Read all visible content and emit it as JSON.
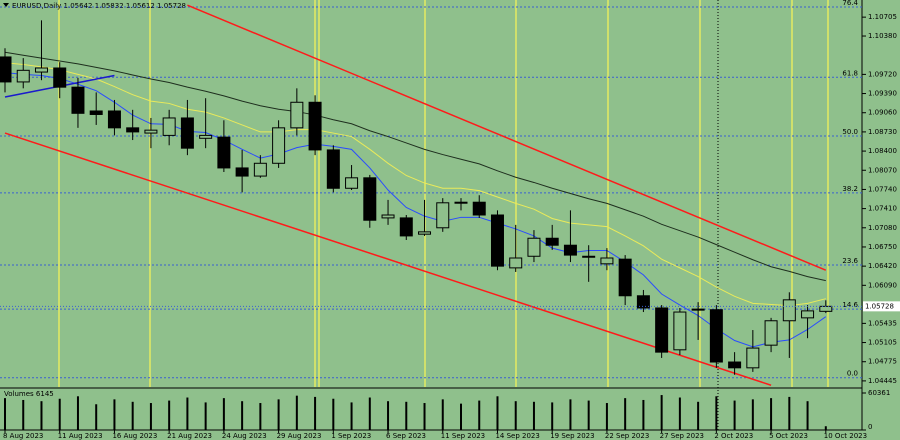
{
  "chart_data": [
    {
      "type": "candlestick",
      "title": "EURUSD,Daily  1.05642 1.05832 1.05612 1.05728",
      "categories": [
        "8 Aug 2023",
        null,
        null,
        "11 Aug 2023",
        null,
        null,
        "16 Aug 2023",
        null,
        null,
        "21 Aug 2023",
        null,
        null,
        "24 Aug 2023",
        null,
        null,
        "29 Aug 2023",
        null,
        null,
        "1 Sep 2023",
        null,
        null,
        "6 Sep 2023",
        null,
        null,
        "11 Sep 2023",
        null,
        null,
        "14 Sep 2023",
        null,
        null,
        "19 Sep 2023",
        null,
        null,
        "22 Sep 2023",
        null,
        null,
        "27 Sep 2023",
        null,
        null,
        "2 Oct 2023",
        null,
        null,
        "5 Oct 2023",
        null,
        null,
        "10 Oct 2023"
      ],
      "open": [
        1.1002,
        1.0959,
        1.0976,
        1.0983,
        1.095,
        1.0909,
        1.0909,
        1.088,
        1.0871,
        1.0867,
        1.0897,
        1.0862,
        1.0864,
        1.0811,
        1.0797,
        1.0819,
        1.088,
        1.0924,
        1.0842,
        1.0776,
        1.0794,
        1.0725,
        1.0725,
        1.0697,
        1.0708,
        1.0751,
        1.0752,
        1.073,
        1.0639,
        1.0659,
        1.069,
        1.0678,
        1.0659,
        1.0646,
        1.0654,
        1.0591,
        1.057,
        1.0498,
        1.0567,
        1.0567,
        1.0477,
        1.0467,
        1.0506,
        1.0548,
        1.0553,
        1.05642
      ],
      "high": [
        1.1017,
        1.1,
        1.1065,
        1.0993,
        1.0966,
        1.0941,
        1.0928,
        1.0911,
        1.0897,
        1.0911,
        1.0928,
        1.0931,
        1.0893,
        1.0842,
        1.0833,
        1.0893,
        1.0948,
        1.0936,
        1.085,
        1.0816,
        1.0799,
        1.0756,
        1.073,
        1.0756,
        1.0759,
        1.0759,
        1.0764,
        1.0738,
        1.0713,
        1.0704,
        1.0713,
        1.0738,
        1.0678,
        1.0673,
        1.0661,
        1.0601,
        1.0575,
        1.057,
        1.058,
        1.0575,
        1.0494,
        1.0532,
        1.0553,
        1.0597,
        1.0575,
        1.05832
      ],
      "low": [
        1.0941,
        1.0948,
        1.0962,
        1.0931,
        1.088,
        1.0885,
        1.0867,
        1.0859,
        1.0845,
        1.085,
        1.0833,
        1.0845,
        1.0804,
        1.0769,
        1.0794,
        1.0811,
        1.0867,
        1.0833,
        1.0769,
        1.0773,
        1.0708,
        1.0713,
        1.0687,
        1.0694,
        1.0701,
        1.0738,
        1.0725,
        1.0635,
        1.0632,
        1.0649,
        1.067,
        1.0649,
        1.0615,
        1.0635,
        1.0575,
        1.0563,
        1.0484,
        1.0489,
        1.0515,
        1.0467,
        1.0455,
        1.046,
        1.0494,
        1.0484,
        1.0518,
        1.05612
      ],
      "close": [
        1.0959,
        1.0979,
        1.0983,
        1.095,
        1.0905,
        1.0903,
        1.088,
        1.0873,
        1.0876,
        1.0897,
        1.0845,
        1.0867,
        1.0811,
        1.0797,
        1.0819,
        1.088,
        1.0924,
        1.0842,
        1.0776,
        1.0794,
        1.0721,
        1.073,
        1.0694,
        1.0701,
        1.0751,
        1.0752,
        1.073,
        1.0642,
        1.0656,
        1.069,
        1.0678,
        1.0661,
        1.0659,
        1.0656,
        1.0591,
        1.057,
        1.0494,
        1.0563,
        1.0568,
        1.0477,
        1.0467,
        1.0501,
        1.0548,
        1.0584,
        1.0565,
        1.05728
      ],
      "up_color": "#8fc08c",
      "down_color": "#000000",
      "moving_averages": [
        {
          "color": "#2a4bff",
          "values": [
            1.0975,
            1.0972,
            1.097,
            1.0965,
            1.0955,
            1.0944,
            1.0924,
            1.0902,
            1.0887,
            1.0886,
            1.0874,
            1.0872,
            1.0859,
            1.0843,
            1.0828,
            1.0835,
            1.0846,
            1.0852,
            1.0848,
            1.0843,
            1.0811,
            1.0773,
            1.0743,
            1.0728,
            1.0719,
            1.0726,
            1.0726,
            1.0716,
            1.0706,
            1.0694,
            1.0673,
            1.0665,
            1.0669,
            1.0669,
            1.0649,
            1.0627,
            1.0594,
            1.0575,
            1.0557,
            1.0534,
            1.0514,
            1.0503,
            1.0511,
            1.0515,
            1.0533,
            1.0555
          ]
        },
        {
          "color": "#eaea5a",
          "values": [
            1.0992,
            1.0989,
            1.0985,
            1.098,
            1.0972,
            1.0964,
            1.0951,
            1.0937,
            1.0926,
            1.0922,
            1.0912,
            1.0907,
            1.0897,
            1.0885,
            1.0873,
            1.0873,
            1.0877,
            1.0877,
            1.0871,
            1.0865,
            1.0843,
            1.0819,
            1.0798,
            1.0785,
            1.0776,
            1.0776,
            1.0772,
            1.0761,
            1.075,
            1.074,
            1.0724,
            1.0716,
            1.0713,
            1.071,
            1.0694,
            1.0677,
            1.0654,
            1.0639,
            1.0624,
            1.0606,
            1.059,
            1.0578,
            1.0576,
            1.0574,
            1.0578,
            1.0586
          ]
        },
        {
          "color": "#1e2e1e",
          "values": [
            1.101,
            1.1005,
            1.1,
            1.0995,
            1.099,
            1.0984,
            1.0978,
            1.0971,
            1.0964,
            1.0958,
            1.095,
            1.0943,
            1.0935,
            1.0926,
            1.0918,
            1.0912,
            1.0908,
            1.0902,
            1.0894,
            1.0887,
            1.0875,
            1.0865,
            1.0854,
            1.0843,
            1.0834,
            1.0826,
            1.0818,
            1.0806,
            1.0795,
            1.0786,
            1.0776,
            1.0767,
            1.0758,
            1.075,
            1.0739,
            1.0728,
            1.0714,
            1.0703,
            1.0692,
            1.0679,
            1.0666,
            1.0653,
            1.0641,
            1.0633,
            1.0624,
            1.0617
          ]
        }
      ],
      "trendlines": [
        {
          "color": "#ff1a1a",
          "x": [
            10,
            45
          ],
          "values": [
            1.1091,
            1.0635
          ]
        },
        {
          "color": "#ff1a1a",
          "x": [
            0,
            42
          ],
          "values": [
            1.0871,
            1.0437
          ]
        },
        {
          "color": "#1a1acc",
          "x": [
            0,
            6
          ],
          "values": [
            1.0933,
            1.097
          ]
        }
      ],
      "fib_levels": [
        {
          "label": "76.4",
          "price": 1.1088
        },
        {
          "label": "61.8",
          "price": 1.0967
        },
        {
          "label": "50.0",
          "price": 1.0866
        },
        {
          "label": "38.2",
          "price": 1.0768
        },
        {
          "label": "23.6",
          "price": 1.0644
        },
        {
          "label": "14.6",
          "price": 1.0568
        },
        {
          "label": "0.0",
          "price": 1.045
        }
      ],
      "fib_color": "#3a5fd0",
      "ylim": [
        1.0434,
        1.11
      ],
      "yticks": [
        {
          "value": 1.10705,
          "label": "1.10705"
        },
        {
          "value": 1.1038,
          "label": "1.10380"
        },
        {
          "value": 1.0972,
          "label": "1.09720"
        },
        {
          "value": 1.0939,
          "label": "1.09390"
        },
        {
          "value": 1.0906,
          "label": "1.09060"
        },
        {
          "value": 1.0873,
          "label": "1.08730"
        },
        {
          "value": 1.084,
          "label": "1.08400"
        },
        {
          "value": 1.0807,
          "label": "1.08070"
        },
        {
          "value": 1.0774,
          "label": "1.07740"
        },
        {
          "value": 1.0741,
          "label": "1.07410"
        },
        {
          "value": 1.0708,
          "label": "1.07080"
        },
        {
          "value": 1.0675,
          "label": "1.06750"
        },
        {
          "value": 1.0642,
          "label": "1.06420"
        },
        {
          "value": 1.0609,
          "label": "1.06090"
        },
        {
          "value": 1.05435,
          "label": "1.05435"
        },
        {
          "value": 1.05105,
          "label": "1.05105"
        },
        {
          "value": 1.04775,
          "label": "1.04775"
        },
        {
          "value": 1.04445,
          "label": "1.04445"
        }
      ],
      "last_price": {
        "value": 1.05728,
        "label": "1.05728"
      },
      "grid": false
    },
    {
      "type": "bar",
      "title": "Volumes 6145",
      "values": [
        52000,
        49000,
        47000,
        51000,
        55000,
        42000,
        50000,
        46000,
        44000,
        48000,
        53000,
        45000,
        52000,
        47000,
        44000,
        50000,
        56000,
        54000,
        51000,
        45000,
        53000,
        47000,
        46000,
        44000,
        50000,
        43000,
        48000,
        55000,
        47000,
        46000,
        45000,
        50000,
        48000,
        44000,
        52000,
        49000,
        57000,
        53000,
        46000,
        55000,
        48000,
        50000,
        52000,
        54000,
        47000,
        6145
      ],
      "color": "#000000",
      "ylim": [
        0,
        60361
      ],
      "yticks": [
        0,
        60361
      ]
    }
  ]
}
